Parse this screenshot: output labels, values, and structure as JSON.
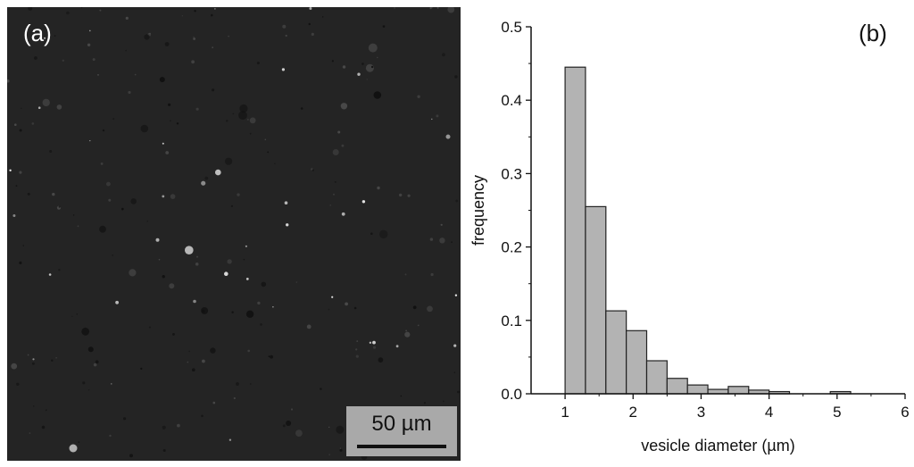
{
  "panel_a": {
    "label": "(a)",
    "scale_text": "50 µm"
  },
  "panel_b": {
    "label": "(b)"
  },
  "chart_data": {
    "type": "bar",
    "xlabel": "vesicle diameter (µm)",
    "ylabel": "frequency",
    "xlim": [
      0.5,
      6
    ],
    "ylim": [
      0,
      0.5
    ],
    "xticks": [
      1,
      2,
      3,
      4,
      5,
      6
    ],
    "yticks": [
      0.0,
      0.1,
      0.2,
      0.3,
      0.4,
      0.5
    ],
    "bin_width": 0.3,
    "bars": [
      {
        "x": 1.15,
        "value": 0.445
      },
      {
        "x": 1.45,
        "value": 0.255
      },
      {
        "x": 1.75,
        "value": 0.113
      },
      {
        "x": 2.05,
        "value": 0.086
      },
      {
        "x": 2.35,
        "value": 0.045
      },
      {
        "x": 2.65,
        "value": 0.021
      },
      {
        "x": 2.95,
        "value": 0.012
      },
      {
        "x": 3.25,
        "value": 0.006
      },
      {
        "x": 3.55,
        "value": 0.01
      },
      {
        "x": 3.85,
        "value": 0.005
      },
      {
        "x": 4.15,
        "value": 0.003
      },
      {
        "x": 5.05,
        "value": 0.003
      }
    ],
    "bar_fill": "#b3b3b3",
    "bar_stroke": "#222222"
  }
}
